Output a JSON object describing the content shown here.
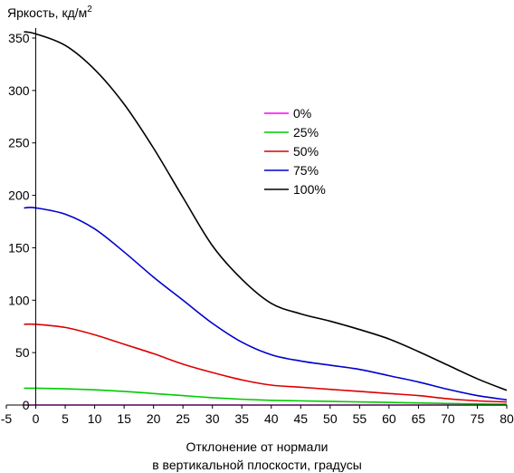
{
  "chart_data": {
    "type": "line",
    "ylabel": "Яркость, кд/м",
    "ylabel_sup": "2",
    "xlabel_line1": "Отклонение от нормали",
    "xlabel_line2": "в вертикальной плоскости, градусы",
    "xlim": [
      -5,
      80
    ],
    "ylim": [
      0,
      350
    ],
    "xticks": [
      -5,
      0,
      5,
      10,
      15,
      20,
      25,
      30,
      35,
      40,
      45,
      50,
      55,
      60,
      65,
      70,
      75,
      80
    ],
    "yticks": [
      0,
      50,
      100,
      150,
      200,
      250,
      300,
      350
    ],
    "grid": false,
    "legend_position": "center-right",
    "series": [
      {
        "name": "0%",
        "color": "#ff00ff",
        "x": [
          -2,
          0,
          10,
          20,
          30,
          40,
          50,
          60,
          70,
          80
        ],
        "y": [
          0,
          0,
          0,
          0,
          0,
          0,
          0,
          0,
          0,
          0
        ]
      },
      {
        "name": "25%",
        "color": "#00cc00",
        "x": [
          -2,
          0,
          5,
          10,
          15,
          20,
          25,
          30,
          35,
          40,
          45,
          50,
          55,
          60,
          65,
          70,
          75,
          80
        ],
        "y": [
          16,
          16,
          15.5,
          14.5,
          13,
          11,
          9,
          7,
          5.5,
          4.5,
          4,
          3.5,
          3,
          2.5,
          2,
          1.5,
          1,
          0.8
        ]
      },
      {
        "name": "50%",
        "color": "#dd0000",
        "x": [
          -2,
          0,
          5,
          10,
          15,
          20,
          25,
          30,
          35,
          40,
          45,
          50,
          55,
          60,
          65,
          70,
          75,
          80
        ],
        "y": [
          77,
          77,
          74,
          67,
          58,
          49,
          39,
          31,
          24,
          19,
          17,
          15,
          13,
          11,
          9,
          6,
          4,
          3
        ]
      },
      {
        "name": "75%",
        "color": "#0000cc",
        "x": [
          -2,
          0,
          5,
          10,
          15,
          20,
          25,
          30,
          35,
          40,
          45,
          50,
          55,
          60,
          65,
          70,
          75,
          80
        ],
        "y": [
          188,
          188,
          182,
          168,
          146,
          122,
          100,
          78,
          60,
          48,
          42,
          38,
          34,
          28,
          22,
          15,
          9,
          5
        ]
      },
      {
        "name": "100%",
        "color": "#000000",
        "x": [
          -2,
          0,
          5,
          10,
          15,
          20,
          25,
          30,
          35,
          40,
          45,
          50,
          55,
          60,
          65,
          70,
          75,
          80
        ],
        "y": [
          356,
          354,
          343,
          320,
          287,
          245,
          198,
          152,
          120,
          97,
          87,
          80,
          72,
          63,
          51,
          38,
          25,
          14
        ]
      }
    ]
  }
}
